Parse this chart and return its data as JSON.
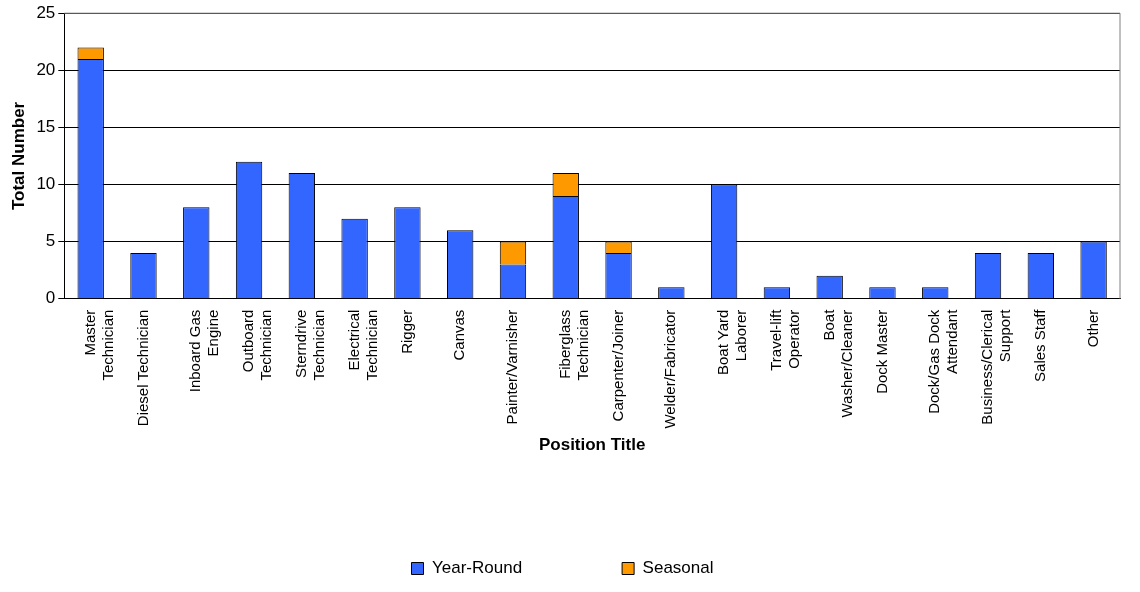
{
  "chart_data": {
    "type": "bar",
    "stacked": true,
    "xlabel": "Position Title",
    "ylabel": "Total Number",
    "categories": [
      "Master Technician",
      "Diesel Technician",
      "Inboard Gas Engine",
      "Outboard Technician",
      "Sterndrive Technician",
      "Electrical Technician",
      "Rigger",
      "Canvas",
      "Painter/Varnisher",
      "Fiberglass Technician",
      "Carpenter/Joiner",
      "Welder/Fabricator",
      "Boat Yard Laborer",
      "Travel-lift Operator",
      "Boat Washer/Cleaner",
      "Dock Master",
      "Dock/Gas Dock Attendant",
      "Business/Clerical Support",
      "Sales Staff",
      "Other"
    ],
    "series": [
      {
        "name": "Year-Round",
        "color": "#3366ff",
        "values": [
          21,
          4,
          8,
          12,
          11,
          7,
          8,
          6,
          3,
          9,
          4,
          1,
          10,
          1,
          2,
          1,
          1,
          4,
          4,
          5
        ]
      },
      {
        "name": "Seasonal",
        "color": "#ff9900",
        "values": [
          1,
          0,
          0,
          0,
          0,
          0,
          0,
          0,
          2,
          2,
          1,
          0,
          0,
          0,
          0,
          0,
          0,
          0,
          0,
          0
        ]
      }
    ],
    "ylim": [
      0,
      25
    ],
    "yticks": [
      0,
      5,
      10,
      15,
      20,
      25
    ],
    "grid": "y",
    "legend": "bottom"
  }
}
